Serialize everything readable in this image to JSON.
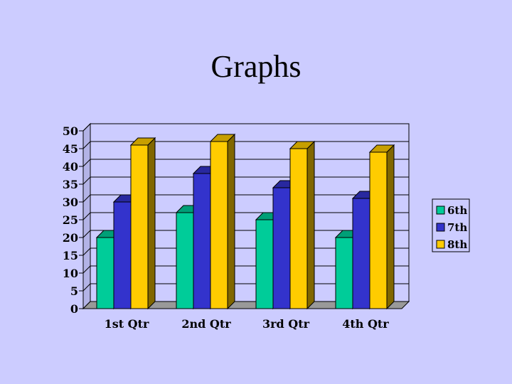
{
  "slide": {
    "title": "Graphs"
  },
  "chart_data": {
    "type": "bar",
    "categories": [
      "1st Qtr",
      "2nd Qtr",
      "3rd Qtr",
      "4th Qtr"
    ],
    "series": [
      {
        "name": "6th",
        "color": "#00cc99",
        "values": [
          20,
          27,
          25,
          20
        ]
      },
      {
        "name": "7th",
        "color": "#3333cc",
        "values": [
          30,
          38,
          34,
          31
        ]
      },
      {
        "name": "8th",
        "color": "#ffcc00",
        "values": [
          46,
          47,
          45,
          44
        ]
      }
    ],
    "yticks": [
      "0",
      "5",
      "10",
      "15",
      "20",
      "25",
      "30",
      "35",
      "40",
      "45",
      "50"
    ],
    "ylim": [
      0,
      50
    ],
    "grid": true,
    "legend": "right",
    "title": "",
    "xlabel": "",
    "ylabel": ""
  }
}
